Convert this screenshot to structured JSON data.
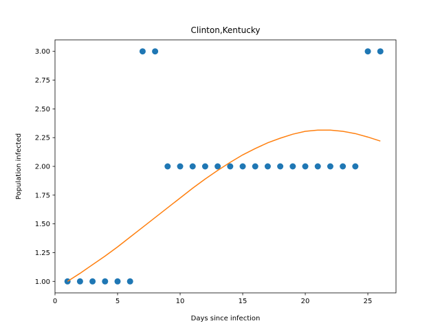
{
  "chart_data": {
    "type": "scatter",
    "title": "Clinton,Kentucky",
    "xlabel": "Days since infection",
    "ylabel": "Population infected",
    "xlim": [
      0,
      27.25
    ],
    "ylim": [
      0.9,
      3.1
    ],
    "xticks": [
      0,
      5,
      10,
      15,
      20,
      25
    ],
    "xtick_labels": [
      "0",
      "5",
      "10",
      "15",
      "20",
      "25"
    ],
    "yticks": [
      1.0,
      1.25,
      1.5,
      1.75,
      2.0,
      2.25,
      2.5,
      2.75,
      3.0
    ],
    "ytick_labels": [
      "1.00",
      "1.25",
      "1.50",
      "1.75",
      "2.00",
      "2.25",
      "2.50",
      "2.75",
      "3.00"
    ],
    "grid": false,
    "series": [
      {
        "kind": "scatter",
        "color": "#1f77b4",
        "x": [
          1,
          2,
          3,
          4,
          5,
          6,
          7,
          8,
          9,
          10,
          11,
          12,
          13,
          14,
          15,
          16,
          17,
          18,
          19,
          20,
          21,
          22,
          23,
          24,
          25,
          26
        ],
        "y": [
          1,
          1,
          1,
          1,
          1,
          1,
          3,
          3,
          2,
          2,
          2,
          2,
          2,
          2,
          2,
          2,
          2,
          2,
          2,
          2,
          2,
          2,
          2,
          2,
          3,
          3
        ]
      },
      {
        "kind": "line",
        "color": "#ff7f0e",
        "x": [
          1,
          2,
          3,
          4,
          5,
          6,
          7,
          8,
          9,
          10,
          11,
          12,
          13,
          14,
          15,
          16,
          17,
          18,
          19,
          20,
          21,
          22,
          23,
          24,
          25,
          26
        ],
        "y": [
          1.0,
          1.07,
          1.145,
          1.22,
          1.3,
          1.385,
          1.47,
          1.555,
          1.64,
          1.725,
          1.81,
          1.89,
          1.965,
          2.035,
          2.1,
          2.155,
          2.205,
          2.245,
          2.28,
          2.305,
          2.315,
          2.315,
          2.305,
          2.285,
          2.255,
          2.22
        ]
      }
    ]
  }
}
